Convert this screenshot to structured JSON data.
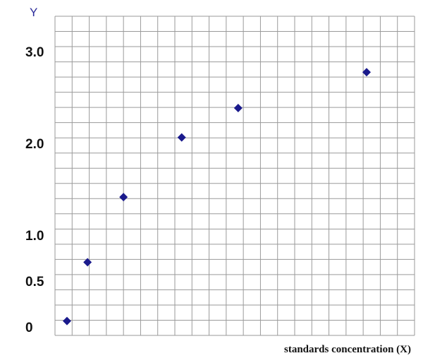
{
  "chart_data": {
    "type": "scatter",
    "y_label": "Y",
    "x_label": "standards concentration (X)",
    "x": [
      0.7,
      1.9,
      4,
      7.4,
      10.7,
      18.2
    ],
    "values": [
      0.08,
      0.72,
      1.43,
      2.08,
      2.4,
      2.79
    ],
    "color": "#1a1a8c",
    "xlim": [
      0,
      21
    ],
    "ylim": [
      0,
      3.4
    ],
    "yticks": [
      0,
      0.5,
      {
        "value": 1,
        "label": "1.0"
      },
      {
        "value": 2,
        "label": "2.0"
      },
      {
        "value": 3,
        "label": "3.0"
      }
    ],
    "grid": true
  }
}
